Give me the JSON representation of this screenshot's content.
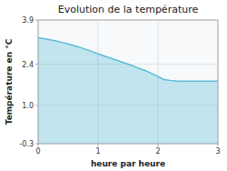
{
  "chart_data": {
    "type": "area",
    "title": "Evolution de la température",
    "x_label": "heure par heure",
    "y_label": "Température en °C",
    "x": [
      0,
      0.1,
      0.2,
      0.3,
      0.4,
      0.5,
      0.6,
      0.7,
      0.8,
      0.9,
      1.0,
      1.1,
      1.2,
      1.3,
      1.4,
      1.5,
      1.6,
      1.7,
      1.8,
      1.9,
      2.0,
      2.05,
      2.1,
      2.2,
      2.3,
      2.4,
      2.5,
      2.6,
      2.7,
      2.8,
      2.9,
      3.0
    ],
    "values": [
      3.3,
      3.27,
      3.23,
      3.19,
      3.14,
      3.09,
      3.03,
      2.97,
      2.9,
      2.83,
      2.75,
      2.68,
      2.61,
      2.54,
      2.47,
      2.4,
      2.33,
      2.25,
      2.17,
      2.08,
      1.98,
      1.93,
      1.88,
      1.85,
      1.83,
      1.82,
      1.82,
      1.82,
      1.82,
      1.82,
      1.82,
      1.82
    ],
    "color": "#5bbcd6",
    "xlim": [
      0,
      3
    ],
    "ylim": [
      -0.3,
      3.9
    ],
    "xticks": [
      0,
      1,
      2,
      3
    ],
    "yticks": [
      -0.3,
      {
        "value": 1.0,
        "label": "1.0"
      },
      {
        "value": 2.4,
        "label": "2.4"
      },
      {
        "value": 3.9,
        "label": "3.9"
      }
    ],
    "grid": true
  }
}
